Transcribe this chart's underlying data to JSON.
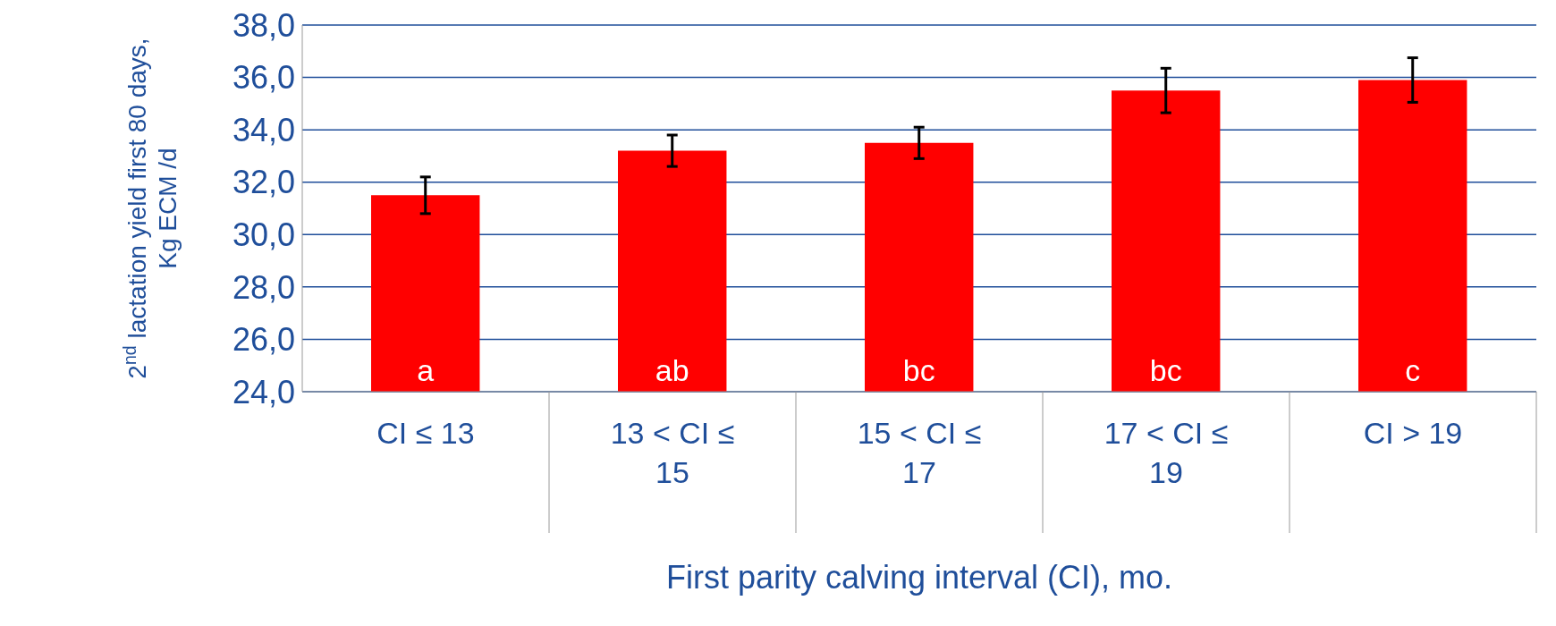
{
  "chart_data": {
    "type": "bar",
    "xlabel": "First parity calving interval (CI), mo.",
    "ylabel": "2$^{nd}$ lactation yield first 80 days, Kg ECM /d",
    "categories": [
      "CI ≤ 13",
      "13 < CI ≤ 15",
      "15 < CI ≤ 17",
      "17 < CI ≤ 19",
      "CI > 19"
    ],
    "values": [
      31.5,
      33.2,
      33.5,
      35.5,
      35.9
    ],
    "errors": [
      0.7,
      0.6,
      0.6,
      0.85,
      0.85
    ],
    "color": "#ff0000",
    "ylim": [
      24,
      38
    ],
    "yticks": [
      {
        "value": 24,
        "label": "24,0"
      },
      {
        "value": 26,
        "label": "26,0"
      },
      {
        "value": 28,
        "label": "28,0"
      },
      {
        "value": 30,
        "label": "30,0"
      },
      {
        "value": 32,
        "label": "32,0"
      },
      {
        "value": 34,
        "label": "34,0"
      },
      {
        "value": 36,
        "label": "36,0"
      },
      {
        "value": 38,
        "label": "38,0"
      }
    ],
    "grid": "y",
    "annotations": [
      "a",
      "ab",
      "bc",
      "bc",
      "c"
    ]
  }
}
